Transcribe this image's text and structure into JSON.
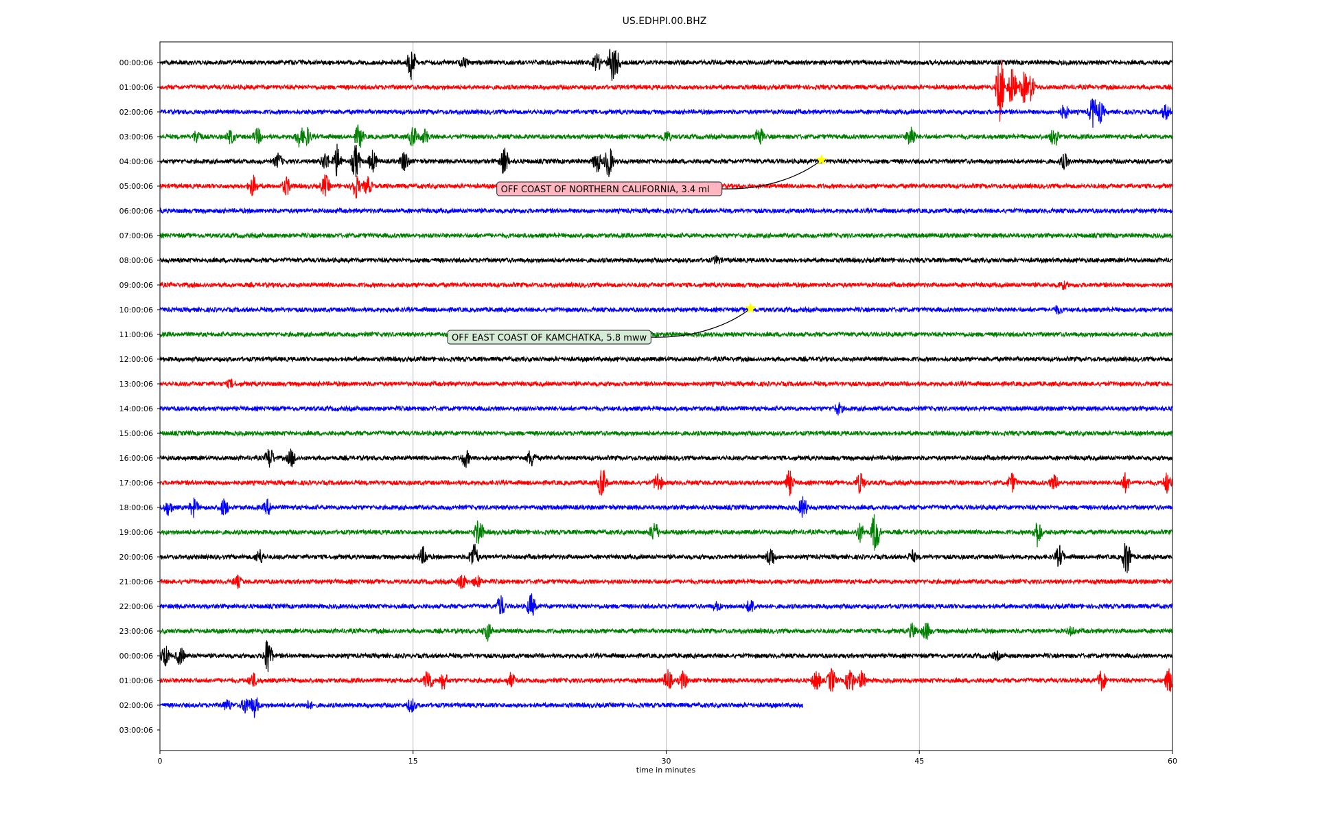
{
  "chart_data": {
    "type": "line",
    "title": "US.EDHPI.00.BHZ",
    "xlabel": "time in minutes",
    "ylabel": "",
    "xlim": [
      0,
      60
    ],
    "x_ticks": [
      0,
      15,
      30,
      45,
      60
    ],
    "x_tick_labels": [
      "0",
      "15",
      "30",
      "45",
      "60"
    ],
    "grid": "vertical lines at x ticks",
    "legend": "none",
    "row_labels": [
      "00:00:06",
      "01:00:06",
      "02:00:06",
      "03:00:06",
      "04:00:06",
      "05:00:06",
      "06:00:06",
      "07:00:06",
      "08:00:06",
      "09:00:06",
      "10:00:06",
      "11:00:06",
      "12:00:06",
      "13:00:06",
      "14:00:06",
      "15:00:06",
      "16:00:06",
      "17:00:06",
      "18:00:06",
      "19:00:06",
      "20:00:06",
      "21:00:06",
      "22:00:06",
      "23:00:06",
      "00:00:06",
      "01:00:06",
      "02:00:06",
      "03:00:06"
    ],
    "color_cycle": [
      "#000000",
      "#ff0000",
      "#0000ff",
      "#008000"
    ],
    "rows": [
      {
        "end_minute": 60,
        "events": [
          [
            14.9,
            0.9
          ],
          [
            26.8,
            1.1
          ],
          [
            25.9,
            0.5
          ],
          [
            27.0,
            0.9
          ],
          [
            18,
            0.2
          ]
        ]
      },
      {
        "end_minute": 60,
        "events": [
          [
            49.8,
            2.0
          ],
          [
            50.5,
            1.2
          ],
          [
            51.2,
            0.9
          ],
          [
            51.6,
            0.7
          ]
        ]
      },
      {
        "end_minute": 60,
        "events": [
          [
            53.6,
            0.4
          ],
          [
            55.3,
            0.9
          ],
          [
            55.7,
            0.6
          ],
          [
            59.6,
            0.4
          ]
        ]
      },
      {
        "end_minute": 60,
        "events": [
          [
            2.2,
            0.4
          ],
          [
            4.2,
            0.4
          ],
          [
            5.8,
            0.4
          ],
          [
            8.3,
            0.6
          ],
          [
            8.7,
            0.5
          ],
          [
            11.8,
            0.7
          ],
          [
            15.0,
            0.6
          ],
          [
            15.7,
            0.4
          ],
          [
            30.0,
            0.3
          ],
          [
            35.5,
            0.6
          ],
          [
            44.5,
            0.7
          ],
          [
            53.0,
            0.6
          ]
        ]
      },
      {
        "end_minute": 60,
        "events": [
          [
            7.0,
            0.4
          ],
          [
            9.8,
            0.5
          ],
          [
            10.5,
            0.9
          ],
          [
            11.6,
            1.0
          ],
          [
            12.6,
            0.6
          ],
          [
            14.5,
            0.6
          ],
          [
            20.4,
            0.9
          ],
          [
            25.9,
            0.6
          ],
          [
            26.6,
            0.9
          ],
          [
            53.6,
            0.4
          ]
        ]
      },
      {
        "end_minute": 60,
        "events": [
          [
            5.5,
            0.6
          ],
          [
            7.5,
            0.5
          ],
          [
            9.8,
            0.6
          ],
          [
            11.6,
            0.7
          ],
          [
            12.3,
            0.5
          ]
        ]
      },
      {
        "end_minute": 60,
        "events": []
      },
      {
        "end_minute": 60,
        "events": []
      },
      {
        "end_minute": 60,
        "events": [
          [
            33.0,
            0.2
          ]
        ]
      },
      {
        "end_minute": 60,
        "events": [
          [
            53.5,
            0.2
          ]
        ]
      },
      {
        "end_minute": 60,
        "events": [
          [
            53.2,
            0.2
          ]
        ]
      },
      {
        "end_minute": 60,
        "events": []
      },
      {
        "end_minute": 60,
        "events": []
      },
      {
        "end_minute": 60,
        "events": [
          [
            4.2,
            0.2
          ]
        ]
      },
      {
        "end_minute": 60,
        "events": [
          [
            40.2,
            0.3
          ]
        ]
      },
      {
        "end_minute": 60,
        "events": []
      },
      {
        "end_minute": 60,
        "events": [
          [
            6.5,
            0.6
          ],
          [
            7.8,
            0.5
          ],
          [
            18.1,
            0.5
          ],
          [
            22.0,
            0.5
          ]
        ]
      },
      {
        "end_minute": 60,
        "events": [
          [
            26.2,
            0.9
          ],
          [
            29.5,
            0.6
          ],
          [
            37.3,
            0.7
          ],
          [
            41.5,
            0.6
          ],
          [
            50.5,
            0.5
          ],
          [
            53.0,
            0.4
          ],
          [
            57.2,
            0.5
          ],
          [
            59.7,
            0.6
          ]
        ]
      },
      {
        "end_minute": 60,
        "events": [
          [
            0.5,
            0.4
          ],
          [
            2.0,
            0.5
          ],
          [
            3.8,
            0.5
          ],
          [
            6.4,
            0.4
          ],
          [
            38.1,
            0.6
          ]
        ]
      },
      {
        "end_minute": 60,
        "events": [
          [
            18.9,
            0.8
          ],
          [
            29.3,
            0.6
          ],
          [
            42.4,
            1.3
          ],
          [
            41.5,
            0.5
          ],
          [
            52.0,
            0.8
          ]
        ]
      },
      {
        "end_minute": 60,
        "events": [
          [
            5.9,
            0.4
          ],
          [
            15.6,
            0.5
          ],
          [
            18.6,
            0.8
          ],
          [
            36.2,
            0.6
          ],
          [
            44.6,
            0.3
          ],
          [
            53.3,
            0.6
          ],
          [
            57.3,
            1.1
          ]
        ]
      },
      {
        "end_minute": 60,
        "events": [
          [
            4.6,
            0.3
          ],
          [
            17.9,
            0.4
          ],
          [
            18.8,
            0.3
          ]
        ]
      },
      {
        "end_minute": 60,
        "events": [
          [
            20.2,
            0.6
          ],
          [
            22.0,
            0.7
          ],
          [
            35.0,
            0.4
          ],
          [
            33.0,
            0.2
          ]
        ]
      },
      {
        "end_minute": 60,
        "events": [
          [
            19.4,
            0.5
          ],
          [
            44.6,
            0.4
          ],
          [
            45.4,
            0.5
          ],
          [
            54.0,
            0.2
          ]
        ]
      },
      {
        "end_minute": 60,
        "events": [
          [
            0.3,
            0.6
          ],
          [
            1.2,
            0.5
          ],
          [
            6.4,
            1.1
          ],
          [
            49.6,
            0.2
          ]
        ]
      },
      {
        "end_minute": 60,
        "events": [
          [
            5.5,
            0.4
          ],
          [
            15.9,
            0.7
          ],
          [
            16.8,
            0.5
          ],
          [
            20.8,
            0.4
          ],
          [
            30.1,
            0.6
          ],
          [
            31.0,
            0.5
          ],
          [
            38.9,
            0.6
          ],
          [
            39.8,
            0.7
          ],
          [
            40.9,
            0.8
          ],
          [
            41.6,
            0.5
          ],
          [
            55.8,
            0.6
          ],
          [
            59.8,
            0.7
          ]
        ]
      },
      {
        "end_minute": 38.1,
        "events": [
          [
            4.0,
            0.3
          ],
          [
            5.1,
            0.5
          ],
          [
            5.6,
            0.6
          ],
          [
            14.9,
            0.4
          ],
          [
            8.8,
            0.2
          ]
        ]
      },
      {
        "end_minute": 0,
        "events": []
      }
    ],
    "annotations": [
      {
        "text": "OFF COAST OF NORTHERN CALIFORNIA, 3.4 ml",
        "row": 4,
        "minute": 39.2,
        "marker": "star",
        "marker_color": "#ffff00",
        "box_color": "#ffb6c1"
      },
      {
        "text": "OFF EAST COAST OF KAMCHATKA, 5.8 mww",
        "row": 10,
        "minute": 35.0,
        "marker": "star",
        "marker_color": "#ffff00",
        "box_color": "#d7ecd7"
      }
    ]
  }
}
